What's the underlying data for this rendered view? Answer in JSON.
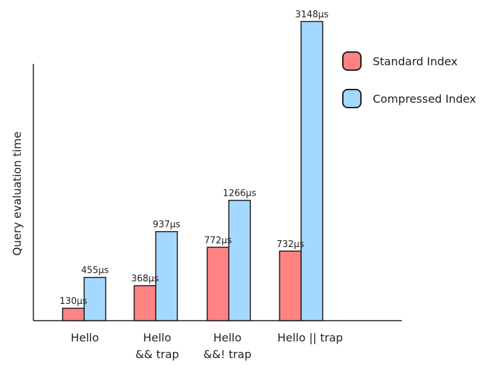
{
  "chart_data": {
    "type": "bar",
    "title": "",
    "xlabel": "",
    "ylabel": "Query evaluation time",
    "categories": [
      [
        "Hello"
      ],
      [
        "Hello",
        "&& trap"
      ],
      [
        "Hello",
        "&&! trap"
      ],
      [
        "Hello || trap"
      ]
    ],
    "unit": "µs",
    "series": [
      {
        "name": "Standard Index",
        "color": "#ff8383",
        "values": [
          130,
          368,
          772,
          732
        ]
      },
      {
        "name": "Compressed Index",
        "color": "#a5d8ff",
        "values": [
          455,
          937,
          1266,
          3148
        ]
      }
    ],
    "data_labels": [
      [
        "130µs",
        "368µs",
        "772µs",
        "732µs"
      ],
      [
        "455µs",
        "937µs",
        "1266µs",
        "3148µs"
      ]
    ],
    "ylim": [
      0,
      3148
    ],
    "grid": false,
    "legend_position": "top-right"
  }
}
